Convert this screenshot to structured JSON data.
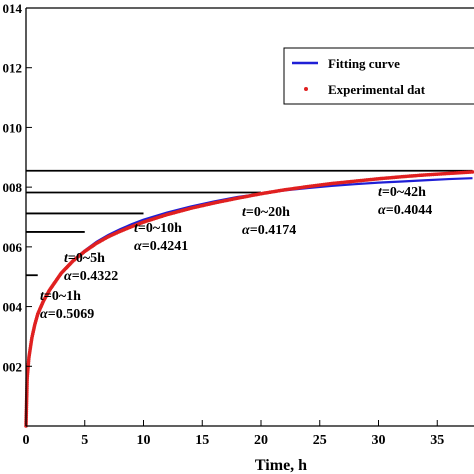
{
  "chart_data": {
    "type": "line",
    "title": "",
    "xlabel": "Time, h",
    "ylabel": "",
    "xlim": [
      0,
      38
    ],
    "ylim": [
      0,
      0.014
    ],
    "x_ticks": [
      0,
      5,
      10,
      15,
      20,
      25,
      30,
      35
    ],
    "x_tick_labels": [
      "0",
      "5",
      "10",
      "15",
      "20",
      "25",
      "30",
      "35"
    ],
    "y_ticks": [
      0.002,
      0.004,
      0.006,
      0.008,
      0.01,
      0.012,
      0.014
    ],
    "y_tick_labels": [
      "002",
      "004",
      "006",
      "008",
      "010",
      "012",
      "014"
    ],
    "grid": false,
    "legend": {
      "position": "top-right",
      "entries": [
        {
          "label": "Fitting curve",
          "marker": "line",
          "color": "#1f1fd6"
        },
        {
          "label": "Experimental dat",
          "marker": "dot",
          "color": "#e02020"
        }
      ]
    },
    "series": [
      {
        "name": "Fitting curve",
        "color": "#1f1fd6",
        "style": "line",
        "x": [
          0,
          0.1,
          0.25,
          0.5,
          0.75,
          1,
          1.5,
          2,
          3,
          4,
          5,
          6,
          7,
          8,
          9,
          10,
          12,
          14,
          16,
          18,
          20,
          22,
          24,
          26,
          28,
          30,
          32,
          34,
          36,
          38
        ],
        "y": [
          0,
          0.00155,
          0.00225,
          0.0029,
          0.00335,
          0.0037,
          0.00418,
          0.00453,
          0.00512,
          0.00555,
          0.00588,
          0.00617,
          0.0064,
          0.00659,
          0.00676,
          0.00691,
          0.00715,
          0.00735,
          0.00752,
          0.00767,
          0.00778,
          0.00789,
          0.00797,
          0.00804,
          0.0081,
          0.00815,
          0.00819,
          0.00823,
          0.00827,
          0.0083
        ]
      },
      {
        "name": "Experimental dat",
        "color": "#e02020",
        "style": "dots",
        "x": [
          0,
          0.1,
          0.25,
          0.5,
          0.75,
          1,
          1.5,
          2,
          3,
          4,
          5,
          6,
          7,
          8,
          9,
          10,
          12,
          14,
          16,
          18,
          20,
          22,
          24,
          26,
          28,
          30,
          32,
          34,
          36,
          38
        ],
        "y": [
          0,
          0.0016,
          0.0023,
          0.00295,
          0.0034,
          0.00375,
          0.0042,
          0.00455,
          0.00512,
          0.00553,
          0.00585,
          0.00612,
          0.00634,
          0.00652,
          0.00668,
          0.00683,
          0.00708,
          0.00729,
          0.00747,
          0.00763,
          0.00778,
          0.00791,
          0.00802,
          0.00812,
          0.0082,
          0.00828,
          0.00835,
          0.00841,
          0.00846,
          0.00851
        ]
      }
    ],
    "reference_lines": [
      {
        "y": 0.00505,
        "x_end": 1
      },
      {
        "y": 0.0065,
        "x_end": 5
      },
      {
        "y": 0.00712,
        "x_end": 10
      },
      {
        "y": 0.00782,
        "x_end": 20
      },
      {
        "y": 0.00855,
        "x_end": 38
      }
    ],
    "annotations": [
      {
        "t_label": "t",
        "range": "=0~1h",
        "alpha_label": "α",
        "alpha_value": "=0.5069"
      },
      {
        "t_label": "t",
        "range": "=0~5h",
        "alpha_label": "α",
        "alpha_value": "=0.4322"
      },
      {
        "t_label": "t",
        "range": "=0~10h",
        "alpha_label": "α",
        "alpha_value": "=0.4241"
      },
      {
        "t_label": "t",
        "range": "=0~20h",
        "alpha_label": "α",
        "alpha_value": "=0.4174"
      },
      {
        "t_label": "t",
        "range": "=0~42h",
        "alpha_label": "α",
        "alpha_value": "=0.4044"
      }
    ]
  }
}
